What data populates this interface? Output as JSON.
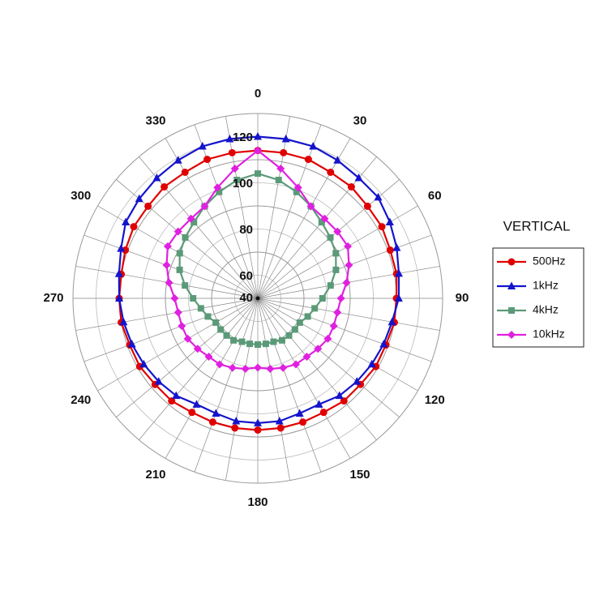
{
  "chart_data": {
    "type": "polar",
    "direction": "clockwise",
    "zero": "top",
    "theta": [
      0,
      10,
      20,
      30,
      40,
      50,
      60,
      70,
      80,
      90,
      100,
      110,
      120,
      130,
      140,
      150,
      160,
      170,
      180,
      190,
      200,
      210,
      220,
      230,
      240,
      250,
      260,
      270,
      280,
      290,
      300,
      310,
      320,
      330,
      340,
      350
    ],
    "thetaticks": [
      0,
      30,
      60,
      90,
      120,
      150,
      180,
      210,
      240,
      270,
      300,
      330
    ],
    "rlim": [
      40,
      120
    ],
    "rticks": [
      40,
      60,
      80,
      100,
      120
    ],
    "grid": true,
    "legend_title": "VERTICAL",
    "legend": "right",
    "series": [
      {
        "name": "500Hz",
        "color": "#e00000",
        "marker": "circle",
        "values": [
          104,
          104,
          104,
          103,
          103,
          102,
          102,
          101,
          101,
          100,
          100,
          99,
          99,
          98,
          98,
          97,
          97,
          97,
          97,
          97,
          97,
          97,
          98,
          98,
          99,
          99,
          100,
          100,
          100,
          101,
          102,
          102,
          103,
          103,
          104,
          104
        ]
      },
      {
        "name": "1kHz",
        "color": "#1414cc",
        "marker": "triangle",
        "values": [
          110,
          110,
          110,
          109,
          108,
          108,
          106,
          104,
          102,
          101,
          99,
          98,
          97,
          96,
          95,
          93,
          93,
          94,
          94,
          94,
          93,
          93,
          95,
          96,
          97,
          98,
          99,
          100,
          101,
          103,
          106,
          107,
          108,
          109,
          110,
          110
        ]
      },
      {
        "name": "4kHz",
        "color": "#5b9a78",
        "marker": "square",
        "values": [
          94,
          92,
          89,
          86,
          83,
          81,
          79,
          76,
          72,
          68,
          65,
          63,
          61,
          61,
          61,
          61,
          60,
          60,
          60,
          60,
          60,
          61,
          61,
          61,
          61,
          63,
          65,
          68,
          72,
          76,
          79,
          81,
          83,
          86,
          89,
          92
        ]
      },
      {
        "name": "10kHz",
        "color": "#e020e0",
        "marker": "diamond",
        "values": [
          104,
          97,
          91,
          86,
          85,
          85,
          85,
          82,
          79,
          76,
          75,
          75,
          75,
          74,
          73,
          73,
          72,
          71,
          70,
          71,
          72,
          73,
          73,
          74,
          75,
          75,
          75,
          76,
          79,
          82,
          85,
          85,
          85,
          86,
          91,
          97
        ]
      }
    ]
  }
}
